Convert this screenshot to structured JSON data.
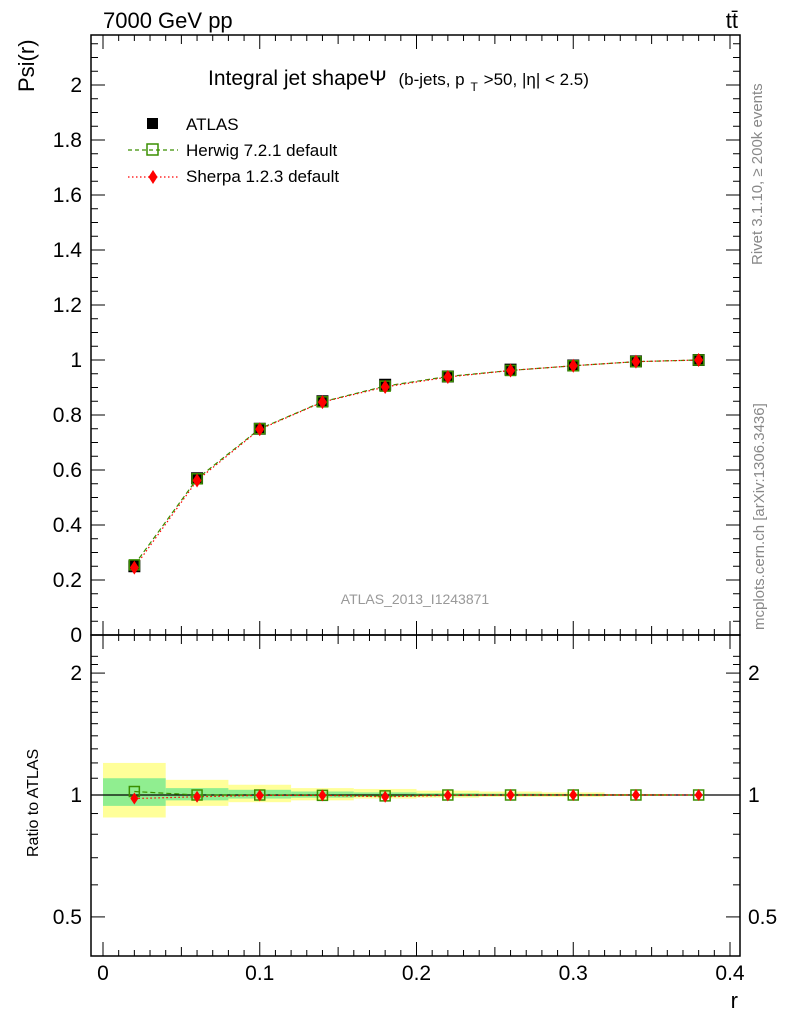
{
  "header": {
    "energy_label": "7000 GeV pp",
    "process_label": "tt̄"
  },
  "side_text": {
    "rivet": "Rivet 3.1.10, ≥ 200k events",
    "mcplots": "mcplots.cern.ch [arXiv:1306.3436]"
  },
  "title": {
    "main": "Integral jet shapeΨ",
    "sub_prefix": "(b-jets, p",
    "sub_subscript": "T",
    "sub_suffix": ">50, |η| < 2.5)"
  },
  "watermark": "ATLAS_2013_I1243871",
  "colors": {
    "atlas": "#000000",
    "herwig": "#3a8f00",
    "sherpa": "#ff0000",
    "band_inner": "#90ee90",
    "band_outer": "#ffff99"
  },
  "chart_data": [
    {
      "type": "line",
      "panel": "main",
      "ylabel": "Psi(r)",
      "xlim": [
        0,
        0.4
      ],
      "ylim": [
        0,
        2.2
      ],
      "x": [
        0.02,
        0.06,
        0.1,
        0.14,
        0.18,
        0.22,
        0.26,
        0.3,
        0.34,
        0.38
      ],
      "x_ticks": [
        "0",
        "0.1",
        "0.2",
        "0.3",
        "0.4"
      ],
      "y_ticks": [
        "0",
        "0.2",
        "0.4",
        "0.6",
        "0.8",
        "1",
        "1.2",
        "1.4",
        "1.6",
        "1.8",
        "2"
      ],
      "y_tick_values": [
        0,
        0.2,
        0.4,
        0.6,
        0.8,
        1.0,
        1.2,
        1.4,
        1.6,
        1.8,
        2.0
      ],
      "series": [
        {
          "name": "ATLAS",
          "marker": "filled-square",
          "values": [
            0.25,
            0.57,
            0.75,
            0.85,
            0.91,
            0.94,
            0.965,
            0.98,
            0.995,
            1.0
          ]
        },
        {
          "name": "Herwig 7.2.1 default",
          "marker": "open-square",
          "line": "dashed",
          "values": [
            0.255,
            0.568,
            0.75,
            0.848,
            0.905,
            0.94,
            0.962,
            0.979,
            0.994,
            1.0
          ]
        },
        {
          "name": "Sherpa 1.2.3 default",
          "marker": "diamond",
          "line": "dotted",
          "values": [
            0.245,
            0.562,
            0.748,
            0.847,
            0.902,
            0.938,
            0.962,
            0.979,
            0.994,
            1.0
          ]
        }
      ]
    },
    {
      "type": "line",
      "panel": "ratio",
      "xlabel": "r",
      "ylabel": "Ratio to ATLAS",
      "xlim": [
        0,
        0.4
      ],
      "ylim": [
        0.4,
        2.3
      ],
      "y_scale": "log",
      "x": [
        0.02,
        0.06,
        0.1,
        0.14,
        0.18,
        0.22,
        0.26,
        0.3,
        0.34,
        0.38
      ],
      "x_ticks": [
        "0",
        "0.1",
        "0.2",
        "0.3",
        "0.4"
      ],
      "y_ticks": [
        "0.5",
        "1",
        "2"
      ],
      "y_tick_values": [
        0.5,
        1,
        2
      ],
      "uncertainty_bands": {
        "bins": [
          [
            0.0,
            0.04
          ],
          [
            0.04,
            0.08
          ],
          [
            0.08,
            0.12
          ],
          [
            0.12,
            0.16
          ],
          [
            0.16,
            0.2
          ],
          [
            0.2,
            0.24
          ],
          [
            0.24,
            0.28
          ],
          [
            0.28,
            0.32
          ],
          [
            0.32,
            0.36
          ],
          [
            0.36,
            0.4
          ]
        ],
        "inner": [
          [
            0.94,
            1.1
          ],
          [
            0.97,
            1.04
          ],
          [
            0.98,
            1.03
          ],
          [
            0.985,
            1.02
          ],
          [
            0.99,
            1.015
          ],
          [
            0.993,
            1.01
          ],
          [
            0.995,
            1.008
          ],
          [
            0.996,
            1.006
          ],
          [
            0.998,
            1.003
          ],
          [
            0.999,
            1.001
          ]
        ],
        "outer": [
          [
            0.88,
            1.2
          ],
          [
            0.94,
            1.09
          ],
          [
            0.96,
            1.06
          ],
          [
            0.97,
            1.04
          ],
          [
            0.98,
            1.035
          ],
          [
            0.985,
            1.025
          ],
          [
            0.99,
            1.02
          ],
          [
            0.99,
            1.015
          ],
          [
            0.995,
            1.006
          ],
          [
            0.998,
            1.002
          ]
        ]
      },
      "series": [
        {
          "name": "Herwig 7.2.1 default",
          "values": [
            1.02,
            1.0,
            1.0,
            0.998,
            0.995,
            1.0,
            1.0,
            1.0,
            1.0,
            1.0
          ]
        },
        {
          "name": "Sherpa 1.2.3 default",
          "values": [
            0.98,
            0.99,
            0.998,
            0.998,
            0.99,
            0.998,
            1.0,
            1.0,
            1.0,
            1.0
          ]
        }
      ]
    }
  ]
}
